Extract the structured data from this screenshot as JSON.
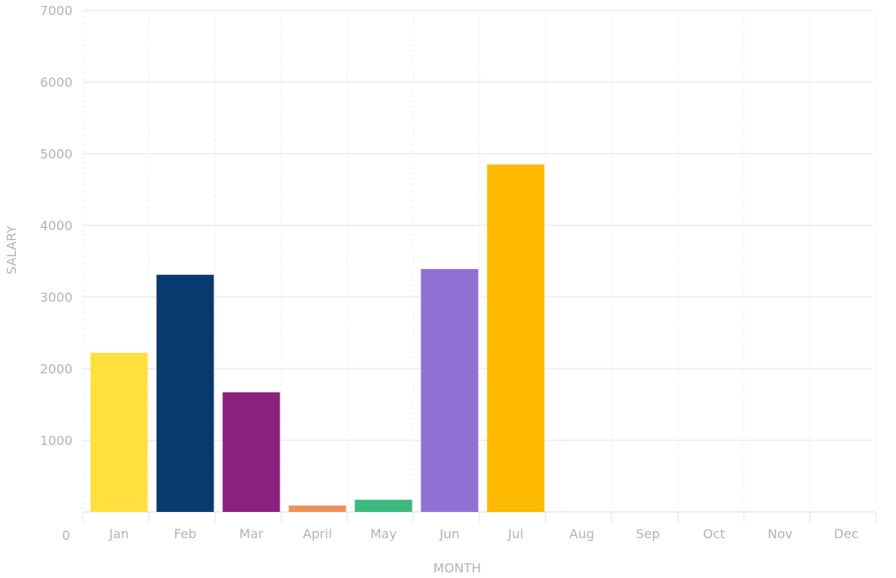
{
  "chart_data": {
    "type": "bar",
    "categories": [
      "Jan",
      "Feb",
      "Mar",
      "April",
      "May",
      "Jun",
      "Jul",
      "Aug",
      "Sep",
      "Oct",
      "Nov",
      "Dec"
    ],
    "values": [
      2220,
      3310,
      1670,
      90,
      170,
      3390,
      4850,
      null,
      null,
      null,
      null,
      null
    ],
    "colors": [
      "#FFE03F",
      "#083A6F",
      "#8A217D",
      "#EF9256",
      "#3DB87E",
      "#9170D3",
      "#FDB900",
      null,
      null,
      null,
      null,
      null
    ],
    "xlabel": "MONTH",
    "ylabel": "SALARY",
    "ylim": [
      0,
      7000
    ],
    "yticks": [
      0,
      1000,
      2000,
      3000,
      4000,
      5000,
      6000,
      7000
    ],
    "grid": true,
    "legend": "none"
  }
}
